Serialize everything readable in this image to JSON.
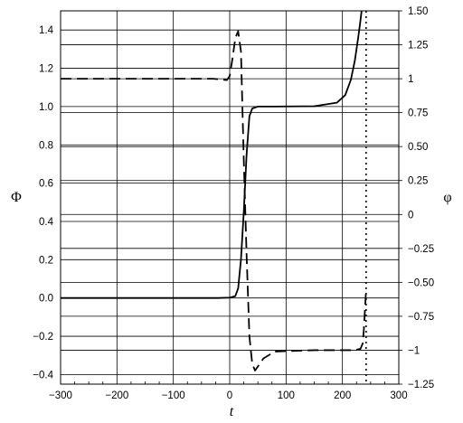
{
  "chart_data": {
    "type": "line",
    "xlabel": "t",
    "ylabel_left": "Φ",
    "ylabel_right": "φ",
    "xlim": [
      -300,
      300
    ],
    "ylim_left": [
      -0.45,
      1.5
    ],
    "ylim_right": [
      -1.25,
      1.5
    ],
    "grid": true,
    "x_ticks": [
      -300,
      -200,
      -100,
      0,
      100,
      200,
      300
    ],
    "x_tick_labels": [
      "−300",
      "−200",
      "−100",
      "0",
      "100",
      "200",
      "300"
    ],
    "y_left_ticks": [
      -0.4,
      -0.2,
      0.0,
      0.2,
      0.4,
      0.6,
      0.8,
      1.0,
      1.2,
      1.4
    ],
    "y_left_tick_labels": [
      "−0.4",
      "−0.2",
      "0.0",
      "0.2",
      "0.4",
      "0.6",
      "0.8",
      "1.0",
      "1.2",
      "1.4"
    ],
    "y_right_ticks": [
      -1.25,
      -1,
      -0.75,
      -0.5,
      -0.25,
      0,
      0.25,
      0.5,
      0.75,
      1,
      1.25,
      1.5
    ],
    "y_right_tick_labels": [
      "−1.25",
      "−1",
      "−0.75",
      "−0.50",
      "−0.25",
      "0",
      "0.25",
      "0.50",
      "0.75",
      "1",
      "1.25",
      "1.50"
    ],
    "vline_x": 242,
    "series": [
      {
        "axis": "left",
        "style": "solid",
        "x": [
          -300,
          -200,
          -100,
          -20,
          0,
          10,
          15,
          20,
          25,
          30,
          35,
          40,
          50,
          80,
          150,
          190,
          205,
          215,
          222,
          228,
          232,
          234
        ],
        "y": [
          0.0,
          0.0,
          0.0,
          0.0,
          0.002,
          0.01,
          0.05,
          0.2,
          0.45,
          0.75,
          0.95,
          0.99,
          1.0,
          1.0,
          1.002,
          1.02,
          1.06,
          1.14,
          1.24,
          1.36,
          1.45,
          1.5
        ]
      },
      {
        "axis": "right",
        "style": "dashed",
        "x": [
          -300,
          -200,
          -100,
          -30,
          -5,
          0,
          5,
          10,
          15,
          20,
          25,
          30,
          35,
          40,
          45,
          50,
          60,
          80,
          150,
          220,
          232,
          236,
          238,
          240,
          242
        ],
        "y": [
          1.0,
          1.0,
          1.0,
          1.0,
          0.99,
          1.02,
          1.15,
          1.3,
          1.35,
          1.2,
          0.4,
          -0.3,
          -0.9,
          -1.1,
          -1.15,
          -1.12,
          -1.06,
          -1.01,
          -1.0,
          -1.0,
          -0.99,
          -0.95,
          -0.85,
          -0.7,
          -0.55
        ]
      }
    ]
  }
}
